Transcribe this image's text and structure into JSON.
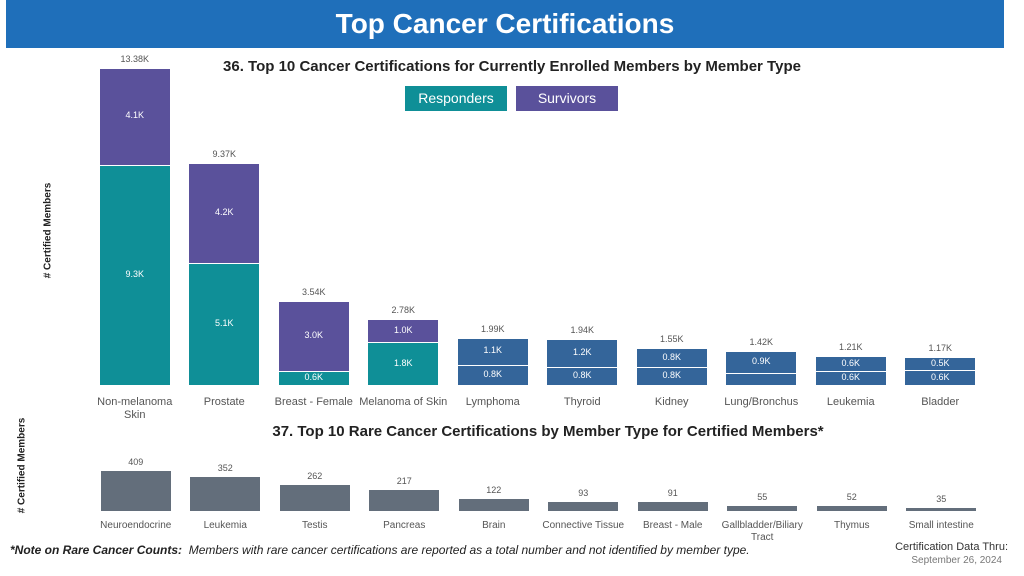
{
  "header": {
    "title": "Top Cancer Certifications"
  },
  "chart_data": [
    {
      "type": "stacked_bar",
      "title": "36. Top 10 Cancer Certifications for Currently Enrolled Members by Member Type",
      "ylabel": "# Certified Members",
      "legend": "top",
      "categories": [
        "Non-melanoma Skin",
        "Prostate",
        "Breast - Female",
        "Melanoma of Skin",
        "Lymphoma",
        "Thyroid",
        "Kidney",
        "Lung/Bronchus",
        "Leukemia",
        "Bladder"
      ],
      "series": [
        {
          "name": "Responders",
          "color": "#0f8f97",
          "colors": [
            "#0f8f97",
            "#0f8f97",
            "#0f8f97",
            "#0f8f97",
            "#34659a",
            "#34659a",
            "#34659a",
            "#34659a",
            "#34659a",
            "#34659a"
          ],
          "values": [
            9300,
            5130,
            580,
            1800,
            845,
            760,
            770,
            520,
            600,
            630
          ],
          "value_labels": [
            "9.3K",
            "5.1K",
            "0.6K",
            "1.8K",
            "0.8K",
            "0.8K",
            "0.8K",
            null,
            "0.6K",
            "0.6K"
          ]
        },
        {
          "name": "Survivors",
          "color": "#5a519b",
          "colors": [
            "#5a519b",
            "#5a519b",
            "#5a519b",
            "#5a519b",
            "#34659a",
            "#34659a",
            "#34659a",
            "#34659a",
            "#34659a",
            "#34659a"
          ],
          "values": [
            4080,
            4240,
            2960,
            980,
            1145,
            1180,
            780,
            900,
            610,
            540
          ],
          "value_labels": [
            "4.1K",
            "4.2K",
            "3.0K",
            "1.0K",
            "1.1K",
            "1.2K",
            "0.8K",
            "0.9K",
            "0.6K",
            "0.5K"
          ]
        }
      ],
      "total_labels": [
        "13.38K",
        "9.37K",
        "3.54K",
        "2.78K",
        "1.99K",
        "1.94K",
        "1.55K",
        "1.42K",
        "1.21K",
        "1.17K"
      ]
    },
    {
      "type": "bar",
      "title": "37. Top 10 Rare Cancer Certifications by Member Type for Certified Members*",
      "ylabel": "# Certified Members",
      "categories": [
        "Neuroendocrine",
        "Leukemia",
        "Testis",
        "Pancreas",
        "Brain",
        "Connective Tissue",
        "Breast - Male",
        "Gallbladder/Biliary Tract",
        "Thymus",
        "Small intestine"
      ],
      "values": [
        409,
        352,
        262,
        217,
        122,
        93,
        91,
        55,
        52,
        35
      ],
      "color": "#636e7b"
    }
  ],
  "footer": {
    "note_label": "*Note on Rare Cancer Counts:",
    "note": "Members with rare cancer certifications are reported as a total number and not identified by member type.",
    "data_thru_label": "Certification Data Thru:",
    "data_thru_date": "September 26, 2024"
  }
}
